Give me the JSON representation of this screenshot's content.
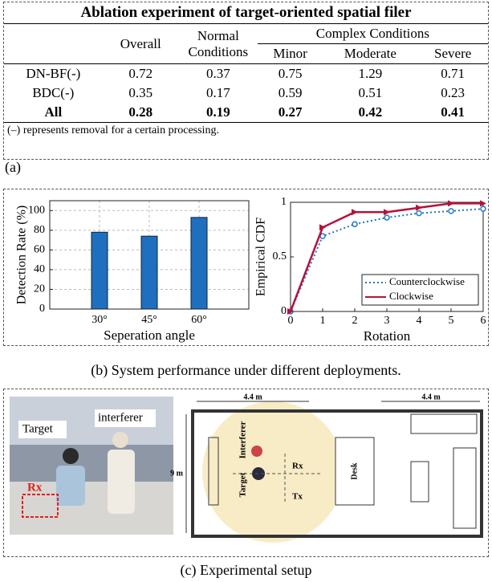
{
  "table": {
    "title": "Ablation experiment of target-oriented spatial filer",
    "header": {
      "overall": "Overall",
      "normal": "Normal Conditions",
      "complex": "Complex Conditions",
      "minor": "Minor",
      "moderate": "Moderate",
      "severe": "Severe"
    },
    "rows": [
      [
        "DN-BF(-)",
        0.72,
        0.37,
        0.75,
        1.29,
        0.71
      ],
      [
        "BDC(-)",
        0.35,
        0.17,
        0.59,
        0.51,
        0.23
      ],
      [
        "All",
        0.28,
        0.19,
        0.27,
        0.42,
        0.41
      ]
    ],
    "note": "(–) represents removal for a certain processing."
  },
  "caption_a": "(a)",
  "chart_data": [
    {
      "type": "bar",
      "y_label": "Detection Rate (%)",
      "x_label": "Seperation angle",
      "categories": [
        "30°",
        "45°",
        "60°"
      ],
      "values": [
        78,
        74,
        93
      ],
      "color": "#1f6fbf",
      "ylim": [
        0,
        110
      ],
      "yticks": [
        0,
        20,
        40,
        60,
        80,
        100
      ],
      "grid": true
    },
    {
      "type": "line",
      "y_label": "Empirical CDF",
      "x_label": "Rotation",
      "x": [
        0,
        1,
        2,
        3,
        4,
        5,
        6
      ],
      "xlim": [
        0,
        6
      ],
      "xticks": [
        0,
        1,
        2,
        3,
        4,
        5,
        6
      ],
      "ylim": [
        0,
        1
      ],
      "yticks": [
        0,
        0.5,
        1
      ],
      "grid": false,
      "legend": "lower right",
      "series": [
        {
          "name": "Counterclockwise",
          "color": "#1f77c4",
          "values": [
            0,
            0.69,
            0.8,
            0.86,
            0.9,
            0.92,
            0.94
          ]
        },
        {
          "name": "Clockwise",
          "color": "#b5123a",
          "values": [
            0,
            0.77,
            0.91,
            0.91,
            0.95,
            0.99,
            0.99
          ]
        }
      ]
    }
  ],
  "caption_b": "(b) System performance under different deployments.",
  "setup": {
    "photo": {
      "target": "Target",
      "interferer": "interferer",
      "rx": "Rx"
    },
    "plan": {
      "width_left": "4.4 m",
      "width_right": "4.4 m",
      "height": "9 m",
      "interferer": "Interferer",
      "target": "Target",
      "rx": "Rx",
      "tx": "Tx",
      "desk": "Desk"
    }
  },
  "caption_c": "(c) Experimental setup"
}
